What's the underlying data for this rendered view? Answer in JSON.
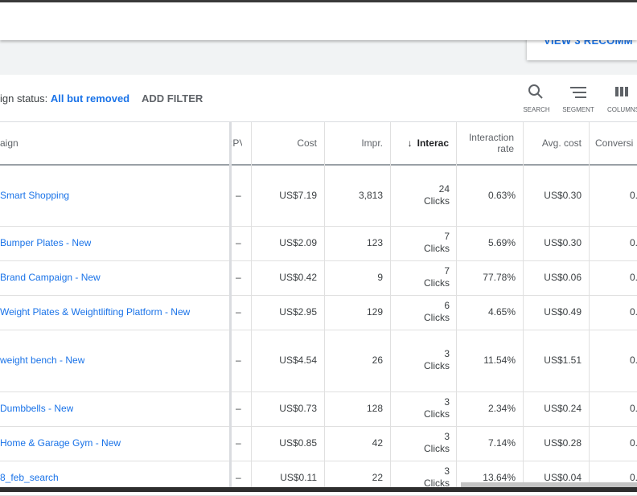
{
  "recommendation_button": "VIEW 3 RECOMM",
  "filter": {
    "label": "ign status:",
    "value": "All but removed",
    "add": "ADD FILTER"
  },
  "tools": [
    "SEARCH",
    "SEGMENT",
    "COLUMNS"
  ],
  "table": {
    "headers": [
      "aign",
      ":PV",
      "Cost",
      "Impr.",
      "Interac",
      "Interaction rate",
      "Avg. cost",
      "Conversi"
    ],
    "rows": [
      [
        "Smart Shopping",
        "–",
        "US$7.19",
        "3,813",
        "24",
        "Clicks",
        "0.63%",
        "US$0.30",
        "0."
      ],
      [
        "Bumper Plates - New",
        "–",
        "US$2.09",
        "123",
        "7",
        "Clicks",
        "5.69%",
        "US$0.30",
        "0."
      ],
      [
        "Brand Campaign - New",
        "–",
        "US$0.42",
        "9",
        "7",
        "Clicks",
        "77.78%",
        "US$0.06",
        "0."
      ],
      [
        "Weight Plates & Weightlifting Platform - New",
        "–",
        "US$2.95",
        "129",
        "6",
        "Clicks",
        "4.65%",
        "US$0.49",
        "0."
      ],
      [
        "weight bench - New",
        "–",
        "US$4.54",
        "26",
        "3",
        "Clicks",
        "11.54%",
        "US$1.51",
        "0."
      ],
      [
        "Dumbbells - New",
        "–",
        "US$0.73",
        "128",
        "3",
        "Clicks",
        "2.34%",
        "US$0.24",
        "0."
      ],
      [
        "Home & Garage Gym - New",
        "–",
        "US$0.85",
        "42",
        "3",
        "Clicks",
        "7.14%",
        "US$0.28",
        "0."
      ],
      [
        "8_feb_search",
        "–",
        "US$0.11",
        "22",
        "3",
        "Clicks",
        "13.64%",
        "US$0.04",
        "0."
      ]
    ]
  }
}
